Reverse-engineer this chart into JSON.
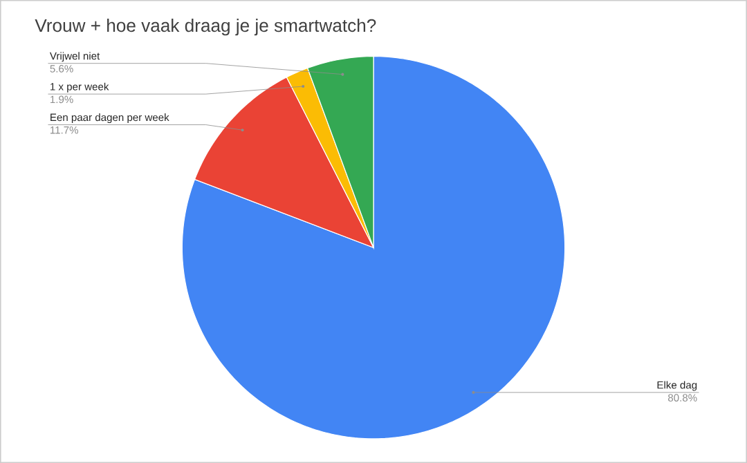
{
  "chart_data": {
    "type": "pie",
    "title": "Vrouw + hoe vaak draag je je smartwatch?",
    "categories": [
      "Elke dag",
      "Een paar dagen per week",
      "1 x per week",
      "Vrijwel niet"
    ],
    "values": [
      80.8,
      11.7,
      1.9,
      5.6
    ],
    "colors": [
      "#4285f4",
      "#ea4335",
      "#fbbc04",
      "#34a853"
    ],
    "value_labels": [
      "80.8%",
      "11.7%",
      "1.9%",
      "5.6%"
    ]
  }
}
